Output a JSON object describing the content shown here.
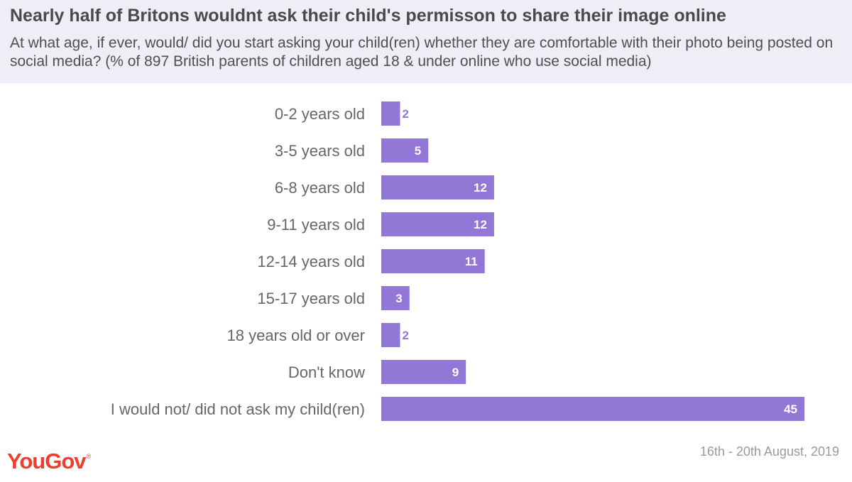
{
  "title": "Nearly half of Britons wouldnt ask their child's permisson to share their image online",
  "subtitle": "At what age, if ever, would/ did you start asking your child(ren) whether they are comfortable with their photo being posted on social media? (% of 897 British parents of children aged 18 & under online who use social media)",
  "brand": "YouGov",
  "date_range": "16th - 20th August, 2019",
  "colors": {
    "bar": "#9277d6",
    "header_bg": "#efedf6",
    "logo": "#ef3e2d"
  },
  "chart_data": {
    "type": "bar",
    "orientation": "horizontal",
    "categories": [
      "0-2 years old",
      "3-5 years old",
      "6-8 years old",
      "9-11 years old",
      "12-14 years old",
      "15-17 years old",
      "18 years old or over",
      "Don't know",
      "I would not/ did not ask my child(ren)"
    ],
    "values": [
      2,
      5,
      12,
      12,
      11,
      3,
      2,
      9,
      45
    ],
    "xlim": [
      0,
      45
    ],
    "grid": false,
    "legend": "none"
  }
}
